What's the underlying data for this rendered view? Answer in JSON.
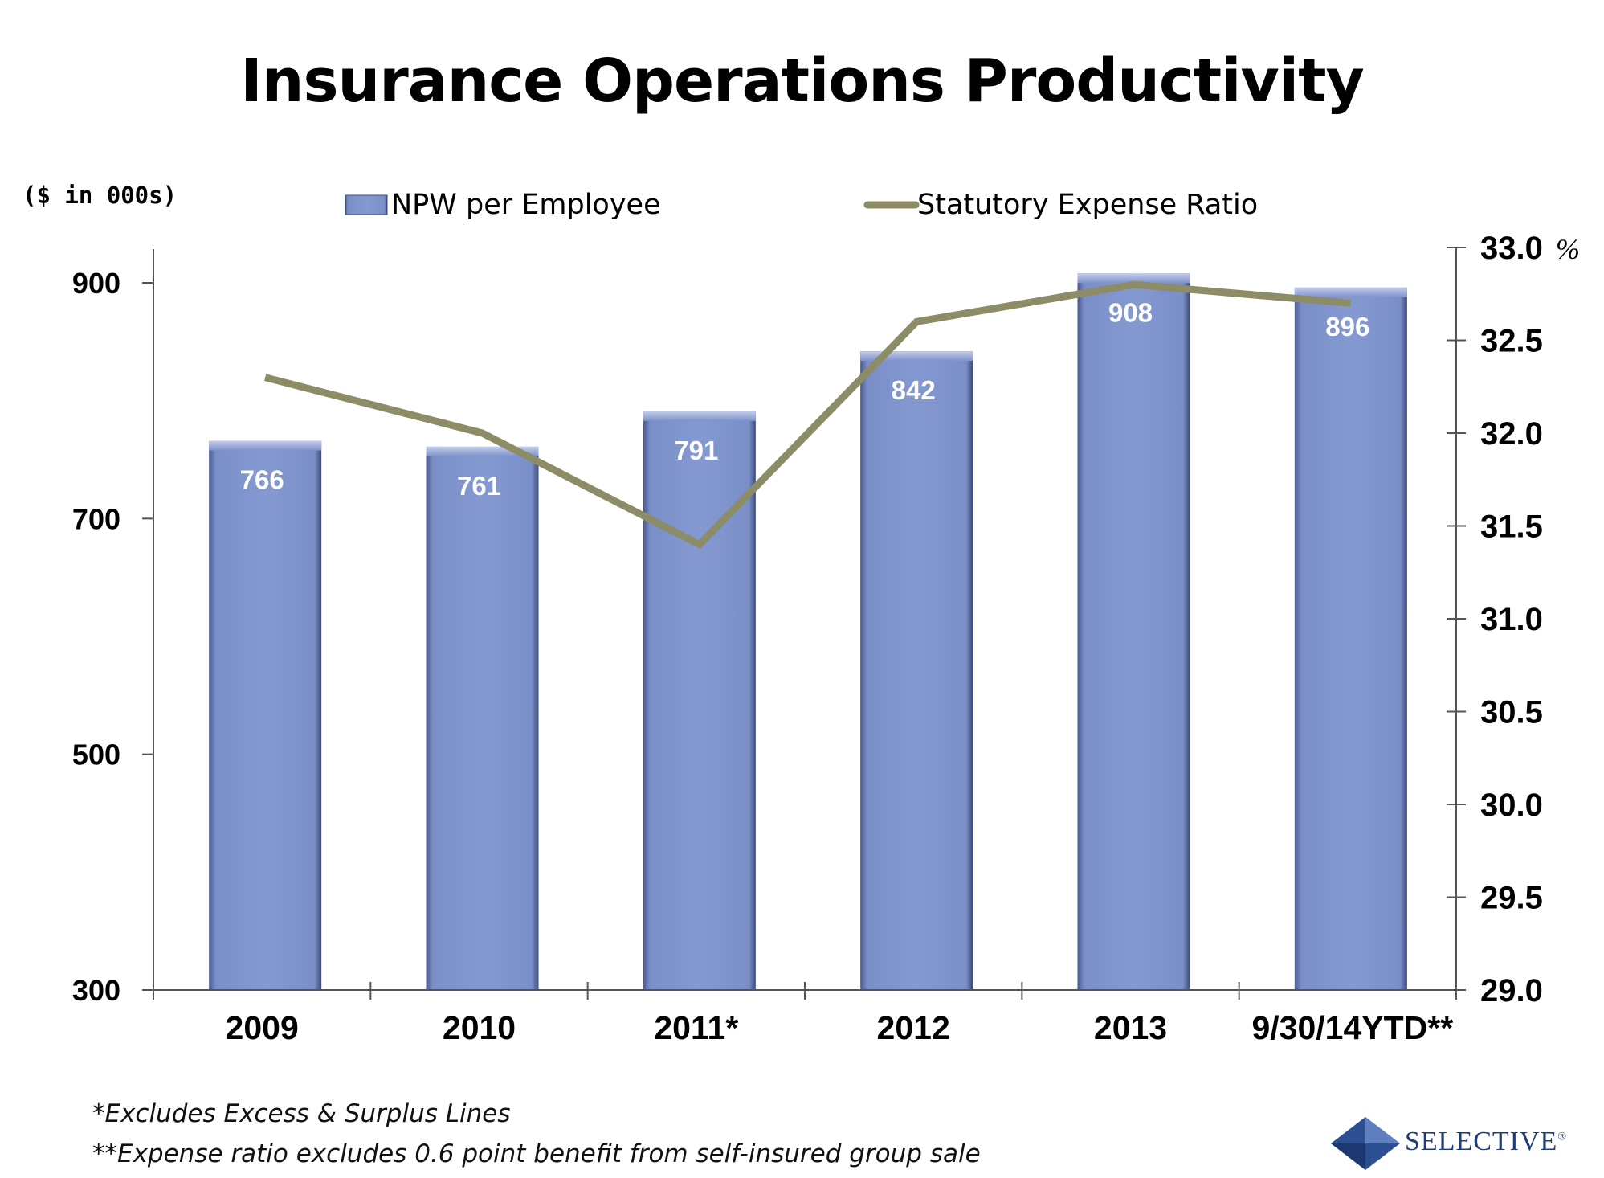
{
  "title": "Insurance Operations Productivity",
  "footnotes": [
    "*Excludes Excess & Surplus Lines",
    "**Expense ratio excludes 0.6 point benefit from self-insured group sale"
  ],
  "logo": {
    "text": "SELECTIVE",
    "mark": "®"
  },
  "chart_data": {
    "type": "bar",
    "title": "Insurance Operations Productivity",
    "units_note": "($ in 000s)",
    "categories": [
      "2009",
      "2010",
      "2011*",
      "2012",
      "2013",
      "9/30/14YTD**"
    ],
    "series": [
      {
        "name": "NPW per Employee",
        "type": "bar",
        "axis": "left",
        "values": [
          766,
          761,
          791,
          842,
          908,
          896
        ],
        "color": "#7f93cb"
      },
      {
        "name": "Statutory Expense Ratio",
        "type": "line",
        "axis": "right",
        "values": [
          32.3,
          32.0,
          31.4,
          32.6,
          32.8,
          32.7
        ],
        "color": "#8c8c66"
      }
    ],
    "left_axis": {
      "ylim": [
        300,
        950
      ],
      "ticks": [
        300,
        500,
        700,
        900
      ]
    },
    "right_axis": {
      "ylim": [
        29.0,
        33.0
      ],
      "ticks": [
        "29.0",
        "29.5",
        "30.0",
        "30.5",
        "31.0",
        "31.5",
        "32.0",
        "32.5",
        "33.0"
      ],
      "unit": "%"
    },
    "legend": "top",
    "grid": false
  }
}
